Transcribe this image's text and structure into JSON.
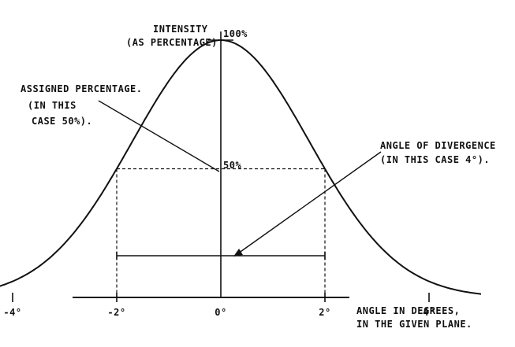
{
  "diagram": {
    "y_axis_label_line1": "INTENSITY",
    "y_axis_label_line2": "(AS PERCENTAGE)",
    "peak_label": "100%",
    "half_label": "50%",
    "assigned_line1": "ASSIGNED PERCENTAGE.",
    "assigned_line2": "(IN THIS",
    "assigned_line3": "CASE 50%).",
    "divergence_line1": "ANGLE OF DIVERGENCE",
    "divergence_line2": "(IN THIS CASE 4°).",
    "x_axis_label_line1": "ANGLE IN DEGREES,",
    "x_axis_label_line2": "IN THE GIVEN PLANE.",
    "ticks": [
      {
        "value": -4,
        "label": "-4°"
      },
      {
        "value": -2,
        "label": "-2°"
      },
      {
        "value": 0,
        "label": "0°"
      },
      {
        "value": 2,
        "label": "2°"
      },
      {
        "value": 4,
        "label": "4°"
      }
    ],
    "peak_intensity_percent": 100,
    "assigned_percent": 50,
    "divergence_half_width_deg": 2,
    "curve_x_range_deg": [
      -5,
      5
    ],
    "ink_color": "#111111"
  }
}
